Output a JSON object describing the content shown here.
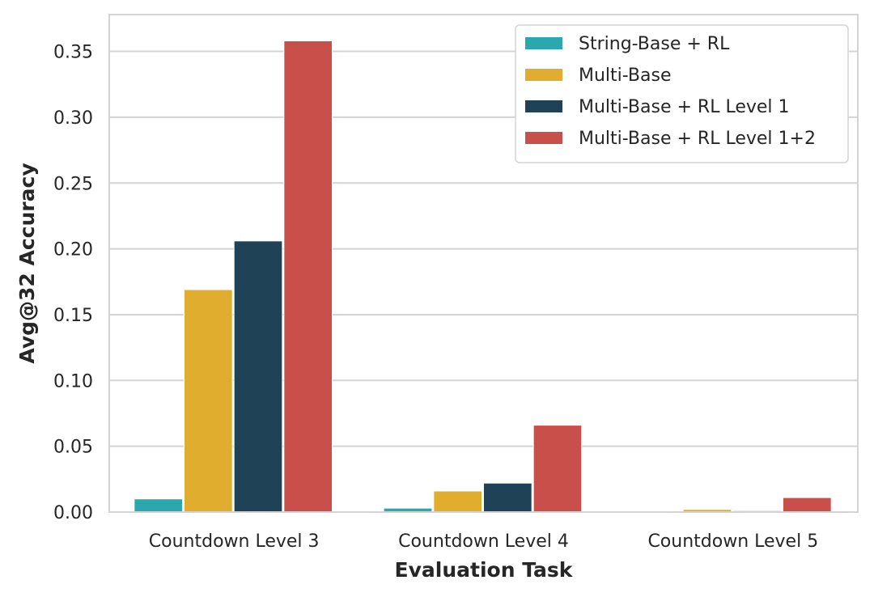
{
  "chart_data": {
    "type": "bar",
    "title": "",
    "xlabel": "Evaluation Task",
    "ylabel": "Avg@32 Accuracy",
    "categories": [
      "Countdown Level 3",
      "Countdown Level 4",
      "Countdown Level 5"
    ],
    "series": [
      {
        "name": "String-Base + RL",
        "values": [
          0.01,
          0.003,
          0.0
        ],
        "color": "#2ba8ad"
      },
      {
        "name": "Multi-Base",
        "values": [
          0.169,
          0.016,
          0.002
        ],
        "color": "#e0ad2e"
      },
      {
        "name": "Multi-Base + RL Level 1",
        "values": [
          0.206,
          0.022,
          0.001
        ],
        "color": "#1f4257"
      },
      {
        "name": "Multi-Base + RL Level 1+2",
        "values": [
          0.358,
          0.066,
          0.011
        ],
        "color": "#c9504a"
      }
    ],
    "ylim": [
      0,
      0.378
    ],
    "yticks": [
      0.0,
      0.05,
      0.1,
      0.15,
      0.2,
      0.25,
      0.3,
      0.35
    ],
    "ytick_labels": [
      "0.00",
      "0.05",
      "0.10",
      "0.15",
      "0.20",
      "0.25",
      "0.30",
      "0.35"
    ],
    "grid": true,
    "legend_position": "top-right"
  }
}
